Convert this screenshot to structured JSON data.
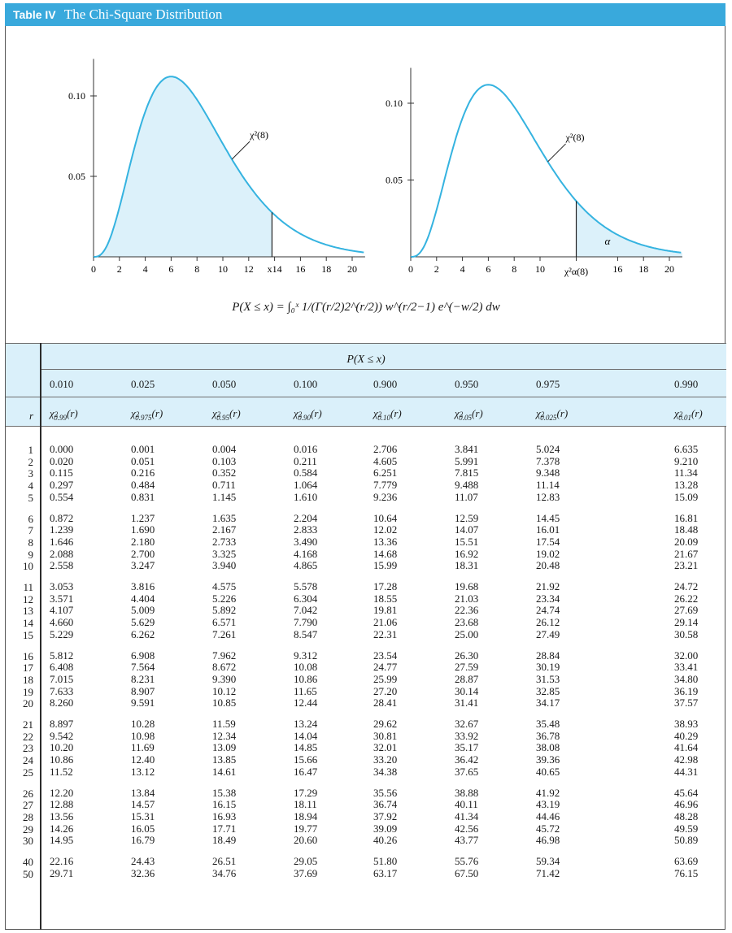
{
  "title": {
    "label": "Table IV",
    "name": "The Chi-Square Distribution"
  },
  "graphs": {
    "left": {
      "yticks": [
        "0.10",
        "0.05"
      ],
      "xticks": [
        "0",
        "2",
        "4",
        "6",
        "8",
        "10",
        "12",
        "x14",
        "16",
        "18",
        "20"
      ],
      "curve_label": "χ²(8)"
    },
    "right": {
      "yticks": [
        "0.10",
        "0.05"
      ],
      "xticks": [
        "0",
        "2",
        "4",
        "6",
        "8",
        "10",
        "16",
        "18",
        "20"
      ],
      "curve_label": "χ²(8)",
      "crit_label": "χ²α(8)",
      "alpha_label": "α"
    }
  },
  "formula": "P(X ≤ x) = ∫₀ˣ 1/(Γ(r/2)2^(r/2)) w^(r/2−1) e^(−w/2) dw",
  "table": {
    "prob_header": "P(X ≤ x)",
    "r_header": "r",
    "probs": [
      "0.010",
      "0.025",
      "0.050",
      "0.100",
      "0.900",
      "0.950",
      "0.975",
      "0.990"
    ],
    "chi_subs": [
      "0.99",
      "0.975",
      "0.95",
      "0.90",
      "0.10",
      "0.05",
      "0.025",
      "0.01"
    ],
    "groups": [
      {
        "rows": [
          {
            "r": "1",
            "v": [
              "0.000",
              "0.001",
              "0.004",
              "0.016",
              "2.706",
              "3.841",
              "5.024",
              "6.635"
            ]
          },
          {
            "r": "2",
            "v": [
              "0.020",
              "0.051",
              "0.103",
              "0.211",
              "4.605",
              "5.991",
              "7.378",
              "9.210"
            ]
          },
          {
            "r": "3",
            "v": [
              "0.115",
              "0.216",
              "0.352",
              "0.584",
              "6.251",
              "7.815",
              "9.348",
              "11.34"
            ]
          },
          {
            "r": "4",
            "v": [
              "0.297",
              "0.484",
              "0.711",
              "1.064",
              "7.779",
              "9.488",
              "11.14",
              "13.28"
            ]
          },
          {
            "r": "5",
            "v": [
              "0.554",
              "0.831",
              "1.145",
              "1.610",
              "9.236",
              "11.07",
              "12.83",
              "15.09"
            ]
          }
        ]
      },
      {
        "rows": [
          {
            "r": "6",
            "v": [
              "0.872",
              "1.237",
              "1.635",
              "2.204",
              "10.64",
              "12.59",
              "14.45",
              "16.81"
            ]
          },
          {
            "r": "7",
            "v": [
              "1.239",
              "1.690",
              "2.167",
              "2.833",
              "12.02",
              "14.07",
              "16.01",
              "18.48"
            ]
          },
          {
            "r": "8",
            "v": [
              "1.646",
              "2.180",
              "2.733",
              "3.490",
              "13.36",
              "15.51",
              "17.54",
              "20.09"
            ]
          },
          {
            "r": "9",
            "v": [
              "2.088",
              "2.700",
              "3.325",
              "4.168",
              "14.68",
              "16.92",
              "19.02",
              "21.67"
            ]
          },
          {
            "r": "10",
            "v": [
              "2.558",
              "3.247",
              "3.940",
              "4.865",
              "15.99",
              "18.31",
              "20.48",
              "23.21"
            ]
          }
        ]
      },
      {
        "rows": [
          {
            "r": "11",
            "v": [
              "3.053",
              "3.816",
              "4.575",
              "5.578",
              "17.28",
              "19.68",
              "21.92",
              "24.72"
            ]
          },
          {
            "r": "12",
            "v": [
              "3.571",
              "4.404",
              "5.226",
              "6.304",
              "18.55",
              "21.03",
              "23.34",
              "26.22"
            ]
          },
          {
            "r": "13",
            "v": [
              "4.107",
              "5.009",
              "5.892",
              "7.042",
              "19.81",
              "22.36",
              "24.74",
              "27.69"
            ]
          },
          {
            "r": "14",
            "v": [
              "4.660",
              "5.629",
              "6.571",
              "7.790",
              "21.06",
              "23.68",
              "26.12",
              "29.14"
            ]
          },
          {
            "r": "15",
            "v": [
              "5.229",
              "6.262",
              "7.261",
              "8.547",
              "22.31",
              "25.00",
              "27.49",
              "30.58"
            ]
          }
        ]
      },
      {
        "rows": [
          {
            "r": "16",
            "v": [
              "5.812",
              "6.908",
              "7.962",
              "9.312",
              "23.54",
              "26.30",
              "28.84",
              "32.00"
            ]
          },
          {
            "r": "17",
            "v": [
              "6.408",
              "7.564",
              "8.672",
              "10.08",
              "24.77",
              "27.59",
              "30.19",
              "33.41"
            ]
          },
          {
            "r": "18",
            "v": [
              "7.015",
              "8.231",
              "9.390",
              "10.86",
              "25.99",
              "28.87",
              "31.53",
              "34.80"
            ]
          },
          {
            "r": "19",
            "v": [
              "7.633",
              "8.907",
              "10.12",
              "11.65",
              "27.20",
              "30.14",
              "32.85",
              "36.19"
            ]
          },
          {
            "r": "20",
            "v": [
              "8.260",
              "9.591",
              "10.85",
              "12.44",
              "28.41",
              "31.41",
              "34.17",
              "37.57"
            ]
          }
        ]
      },
      {
        "rows": [
          {
            "r": "21",
            "v": [
              "8.897",
              "10.28",
              "11.59",
              "13.24",
              "29.62",
              "32.67",
              "35.48",
              "38.93"
            ]
          },
          {
            "r": "22",
            "v": [
              "9.542",
              "10.98",
              "12.34",
              "14.04",
              "30.81",
              "33.92",
              "36.78",
              "40.29"
            ]
          },
          {
            "r": "23",
            "v": [
              "10.20",
              "11.69",
              "13.09",
              "14.85",
              "32.01",
              "35.17",
              "38.08",
              "41.64"
            ]
          },
          {
            "r": "24",
            "v": [
              "10.86",
              "12.40",
              "13.85",
              "15.66",
              "33.20",
              "36.42",
              "39.36",
              "42.98"
            ]
          },
          {
            "r": "25",
            "v": [
              "11.52",
              "13.12",
              "14.61",
              "16.47",
              "34.38",
              "37.65",
              "40.65",
              "44.31"
            ]
          }
        ]
      },
      {
        "rows": [
          {
            "r": "26",
            "v": [
              "12.20",
              "13.84",
              "15.38",
              "17.29",
              "35.56",
              "38.88",
              "41.92",
              "45.64"
            ]
          },
          {
            "r": "27",
            "v": [
              "12.88",
              "14.57",
              "16.15",
              "18.11",
              "36.74",
              "40.11",
              "43.19",
              "46.96"
            ]
          },
          {
            "r": "28",
            "v": [
              "13.56",
              "15.31",
              "16.93",
              "18.94",
              "37.92",
              "41.34",
              "44.46",
              "48.28"
            ]
          },
          {
            "r": "29",
            "v": [
              "14.26",
              "16.05",
              "17.71",
              "19.77",
              "39.09",
              "42.56",
              "45.72",
              "49.59"
            ]
          },
          {
            "r": "30",
            "v": [
              "14.95",
              "16.79",
              "18.49",
              "20.60",
              "40.26",
              "43.77",
              "46.98",
              "50.89"
            ]
          }
        ]
      },
      {
        "rows": [
          {
            "r": "40",
            "v": [
              "22.16",
              "24.43",
              "26.51",
              "29.05",
              "51.80",
              "55.76",
              "59.34",
              "63.69"
            ]
          },
          {
            "r": "50",
            "v": [
              "29.71",
              "32.36",
              "34.76",
              "37.69",
              "63.17",
              "67.50",
              "71.42",
              "76.15"
            ]
          }
        ]
      }
    ]
  },
  "colors": {
    "title_bar": "#39a9dc",
    "curve": "#35b3e0",
    "fill": "#dcf1fa",
    "header_band": "#daf0fa"
  }
}
